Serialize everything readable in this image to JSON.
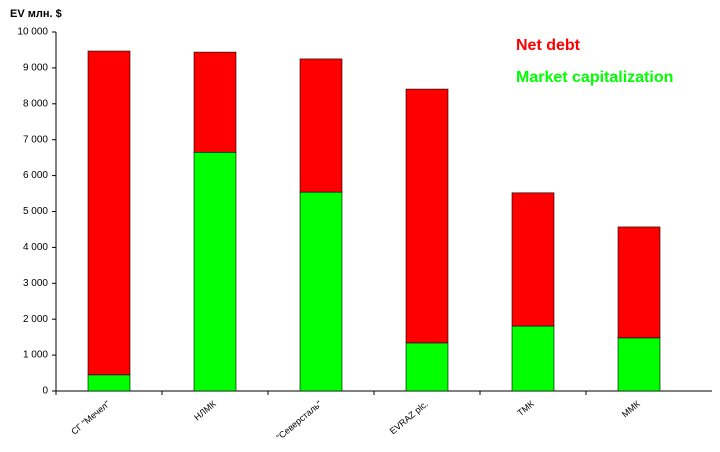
{
  "chart_data": {
    "type": "stacked_bar",
    "y_label": "EV млн. $",
    "categories": [
      "СГ \"Мечел\"",
      "НЛМК",
      "\"Северсталь\"",
      "EVRAZ plc.",
      "ТМК",
      "ММК"
    ],
    "series": [
      {
        "name": "Market capitalization",
        "color": "#00ff00",
        "values": [
          450,
          6650,
          5540,
          1340,
          1810,
          1480
        ]
      },
      {
        "name": "Net debt",
        "color": "#ff0000",
        "values": [
          9020,
          2790,
          3710,
          7070,
          3710,
          3090
        ]
      }
    ],
    "ylim": [
      0,
      10000
    ],
    "yticks": [
      0,
      {
        "value": 1000,
        "label": "1 000"
      },
      {
        "value": 2000,
        "label": "2 000"
      },
      {
        "value": 3000,
        "label": "3 000"
      },
      {
        "value": 4000,
        "label": "4 000"
      },
      {
        "value": 5000,
        "label": "5 000"
      },
      {
        "value": 6000,
        "label": "6 000"
      },
      {
        "value": 7000,
        "label": "7 000"
      },
      {
        "value": 8000,
        "label": "8 000"
      },
      {
        "value": 9000,
        "label": "9 000"
      },
      {
        "value": 10000,
        "label": "10 000"
      }
    ],
    "grid": false
  }
}
